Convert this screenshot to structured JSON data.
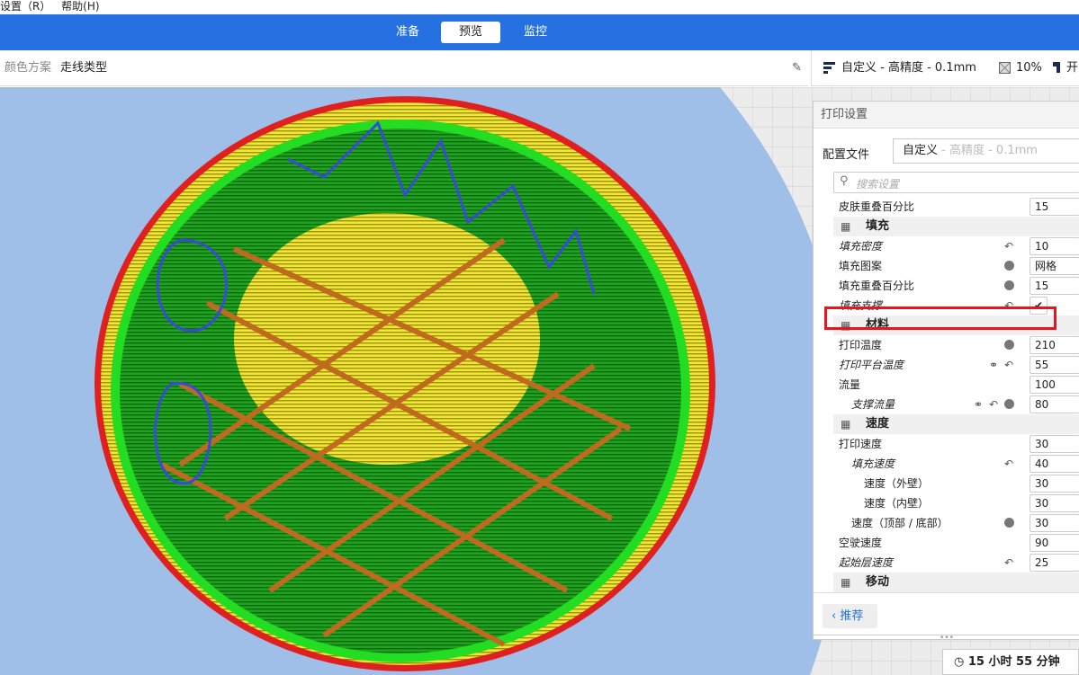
{
  "menubar": {
    "items": [
      "设置（R）",
      "帮助(H)"
    ]
  },
  "header": {
    "tabs": [
      {
        "label": "准备",
        "active": false
      },
      {
        "label": "预览",
        "active": true
      },
      {
        "label": "监控",
        "active": false
      }
    ]
  },
  "toolbar": {
    "color_scheme_label": "颜色方案",
    "color_scheme_value": "走线类型",
    "profile": "自定义 - 高精度 - 0.1mm",
    "infill": "10%",
    "support": "开"
  },
  "panel": {
    "title": "打印设置",
    "profile_label": "配置文件",
    "profile_value": "自定义",
    "profile_suffix": " - 高精度 - 0.1mm",
    "search_placeholder": "搜索设置",
    "rows": [
      {
        "label": "皮肤重叠百分比",
        "value": "15"
      },
      {
        "label": "填充",
        "section": true,
        "icon": "infill-icon"
      },
      {
        "label": "填充密度",
        "value": "10",
        "italic": true,
        "icons": [
          "reset"
        ]
      },
      {
        "label": "填充图案",
        "value": "网格",
        "icons": [
          "info"
        ]
      },
      {
        "label": "填充重叠百分比",
        "value": "15",
        "icons": [
          "info"
        ]
      },
      {
        "label": "填充支撑",
        "checkbox": true,
        "checked": true,
        "italic": true,
        "icons": [
          "reset"
        ],
        "highlighted": true
      },
      {
        "label": "材料",
        "section": true,
        "icon": "material-icon"
      },
      {
        "label": "打印温度",
        "value": "210",
        "icons": [
          "info"
        ]
      },
      {
        "label": "打印平台温度",
        "value": "55",
        "italic": true,
        "icons": [
          "link",
          "reset"
        ]
      },
      {
        "label": "流量",
        "value": "100"
      },
      {
        "label": "支撑流量",
        "value": "80",
        "italic": true,
        "indent": 1,
        "icons": [
          "link",
          "reset",
          "info"
        ]
      },
      {
        "label": "速度",
        "section": true,
        "icon": "speed-icon"
      },
      {
        "label": "打印速度",
        "value": "30"
      },
      {
        "label": "填充速度",
        "value": "40",
        "italic": true,
        "indent": 1,
        "icons": [
          "reset"
        ]
      },
      {
        "label": "速度（外壁）",
        "value": "30",
        "indent": 2
      },
      {
        "label": "速度（内壁）",
        "value": "30",
        "indent": 2
      },
      {
        "label": "速度（顶部 / 底部）",
        "value": "30",
        "indent": 1,
        "icons": [
          "info"
        ]
      },
      {
        "label": "空驶速度",
        "value": "90"
      },
      {
        "label": "起始层速度",
        "value": "25",
        "italic": true,
        "icons": [
          "reset"
        ]
      },
      {
        "label": "移动",
        "section": true,
        "icon": "travel-icon"
      }
    ],
    "recommended_button": "推荐"
  },
  "estimate": {
    "time": "15 小时 55 分钟"
  },
  "colors": {
    "accent": "#2671e2",
    "highlight": "#e8141e",
    "wall_outer": "#e02020",
    "wall_inner": "#22dd22",
    "infill": "#e8a040",
    "skin": "#f2e632",
    "support": "#4ab0c0",
    "build_plate": "#9fbfe8"
  }
}
